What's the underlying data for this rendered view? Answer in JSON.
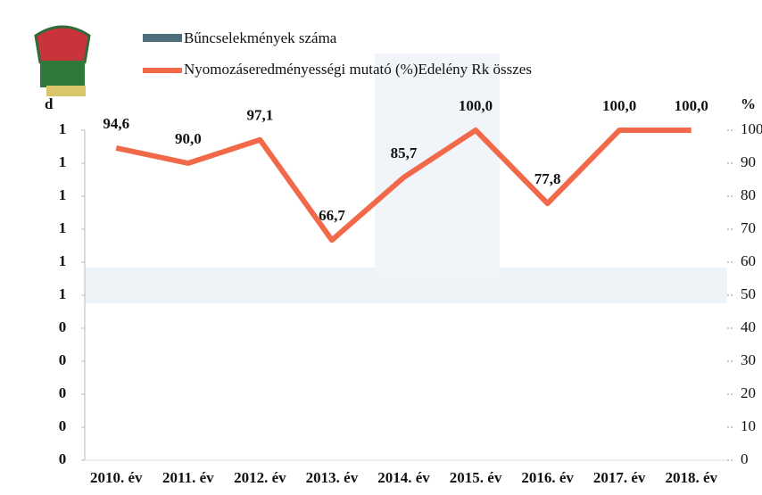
{
  "chart_data": {
    "type": "bar-line",
    "categories": [
      "2010. év",
      "2011. év",
      "2012. év",
      "2013. év",
      "2014. év",
      "2015. év",
      "2016. év",
      "2017. év",
      "2018. év"
    ],
    "series": [
      {
        "name": "Bűncselekmények száma",
        "color": "#4d6f7c",
        "type": "bar",
        "values": [
          null,
          null,
          null,
          null,
          null,
          null,
          null,
          null,
          null
        ]
      },
      {
        "name": "Nyomozáseredményességi mutató (%)Edelény Rk összes",
        "color": "#f2694a",
        "type": "line",
        "axis": "y2",
        "values": [
          94.6,
          90.0,
          97.1,
          66.7,
          85.7,
          100.0,
          77.8,
          100.0,
          100.0
        ],
        "value_labels": [
          "94,6",
          "90,0",
          "97,1",
          "66,7",
          "85,7",
          "100,0",
          "77,8",
          "100,0",
          "100,0"
        ]
      }
    ],
    "ylabel": "d",
    "y2label": "%",
    "ylim": [
      0,
      1
    ],
    "yticks": [
      {
        "value": 0,
        "label": "0"
      },
      {
        "value": 0.1,
        "label": "0"
      },
      {
        "value": 0.2,
        "label": "0"
      },
      {
        "value": 0.3,
        "label": "0"
      },
      {
        "value": 0.4,
        "label": "0"
      },
      {
        "value": 0.5,
        "label": "1"
      },
      {
        "value": 0.6,
        "label": "1"
      },
      {
        "value": 0.7,
        "label": "1"
      },
      {
        "value": 0.8,
        "label": "1"
      },
      {
        "value": 0.9,
        "label": "1"
      },
      {
        "value": 1,
        "label": "1"
      }
    ],
    "y2lim": [
      0,
      100
    ],
    "y2ticks": [
      0,
      10,
      20,
      30,
      40,
      50,
      60,
      70,
      80,
      90,
      100
    ]
  }
}
